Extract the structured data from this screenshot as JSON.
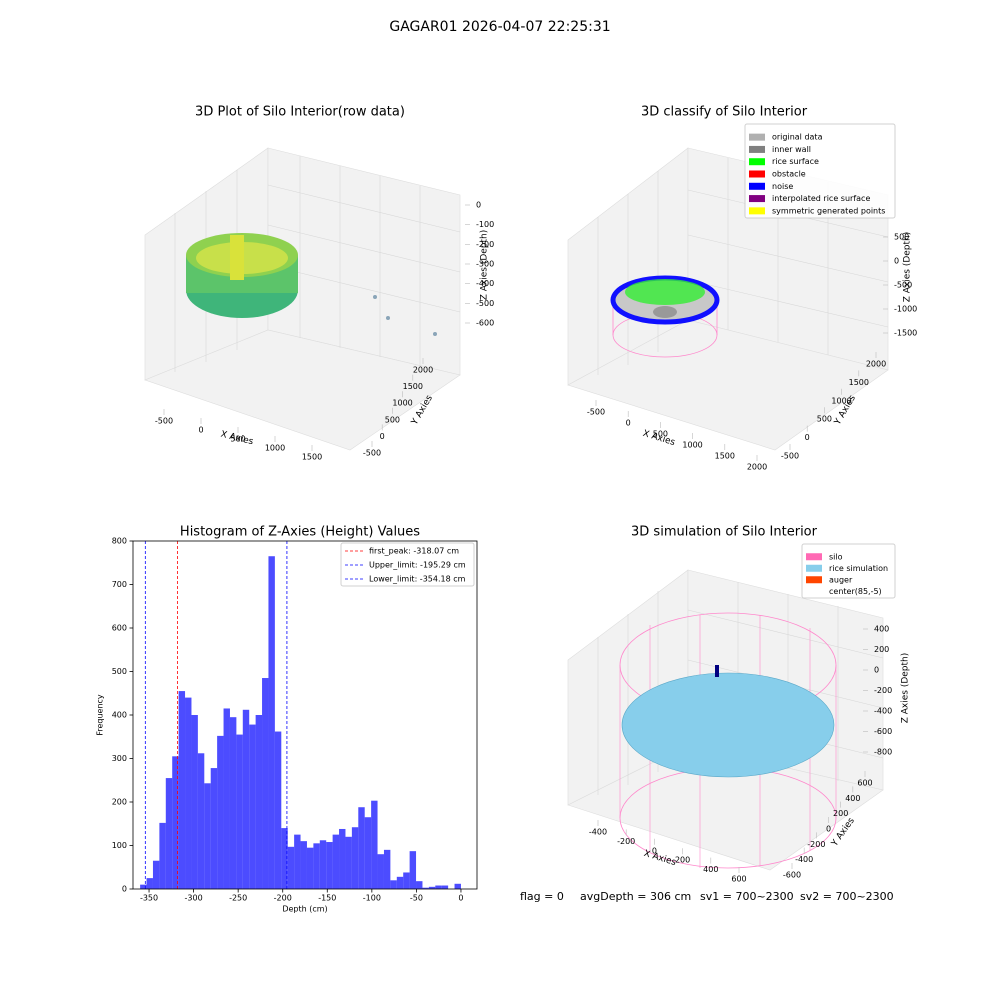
{
  "suptitle": "GAGAR01 2026-04-07 22:25:31",
  "chart_data": [
    {
      "type": "scatter3d",
      "title": "3D Plot of Silo Interior(row data)",
      "xlabel": "X Axies",
      "ylabel": "Y Axies",
      "zlabel": "Z Axies (Depth)",
      "xlim": [
        -500,
        1500
      ],
      "xticks": [
        -500,
        0,
        500,
        1000,
        1500
      ],
      "ylim": [
        -500,
        2000
      ],
      "yticks": [
        -500,
        0,
        500,
        1000,
        1500,
        2000
      ],
      "zlim": [
        -600,
        0
      ],
      "zticks": [
        -600,
        -500,
        -400,
        -300,
        -200,
        -100,
        0
      ]
    },
    {
      "type": "scatter3d",
      "title": "3D classify of Silo Interior",
      "xlabel": "X Axies",
      "ylabel": "Y Axies",
      "zlabel": "Z Axies (Depth)",
      "xlim": [
        -500,
        2000
      ],
      "xticks": [
        -500,
        0,
        500,
        1000,
        1500,
        2000
      ],
      "ylim": [
        -500,
        2000
      ],
      "yticks": [
        -500,
        0,
        500,
        1000,
        1500,
        2000
      ],
      "zlim": [
        -1500,
        500
      ],
      "zticks": [
        -1500,
        -1000,
        -500,
        0,
        500
      ],
      "series": [
        {
          "name": "original data",
          "color": "#b0b0b0"
        },
        {
          "name": "inner wall",
          "color": "#808080"
        },
        {
          "name": "rice surface",
          "color": "#00ff00"
        },
        {
          "name": "obstacle",
          "color": "#ff0000"
        },
        {
          "name": "noise",
          "color": "#0000ff"
        },
        {
          "name": "interpolated rice surface",
          "color": "#800080"
        },
        {
          "name": "symmetric generated points",
          "color": "#ffff00"
        }
      ]
    },
    {
      "type": "histogram",
      "title": "Histogram of Z-Axies (Height) Values",
      "xlabel": "Depth (cm)",
      "ylabel": "Frequency",
      "color": "#0000ff",
      "bins": [
        -360,
        -352.8,
        -345.6,
        -338.4,
        -331.2,
        -324,
        -316.8,
        -309.6,
        -302.4,
        -295.2,
        -288,
        -280.8,
        -273.6,
        -266.4,
        -259.2,
        -252,
        -244.8,
        -237.6,
        -230.4,
        -223.2,
        -216,
        -208.8,
        -201.6,
        -194.4,
        -187.2,
        -180,
        -172.8,
        -165.6,
        -158.4,
        -151.2,
        -144,
        -136.8,
        -129.6,
        -122.4,
        -115.2,
        -108,
        -100.8,
        -93.6,
        -86.4,
        -79.2,
        -72,
        -64.8,
        -57.6,
        -50.4,
        -43.2,
        -36,
        -28.8,
        -21.6,
        -14.4,
        -7.2,
        0
      ],
      "counts": [
        10,
        25,
        65,
        152,
        255,
        305,
        455,
        440,
        400,
        312,
        243,
        278,
        352,
        415,
        395,
        355,
        412,
        378,
        400,
        485,
        765,
        362,
        140,
        97,
        125,
        110,
        95,
        105,
        112,
        108,
        125,
        138,
        120,
        142,
        188,
        165,
        203,
        80,
        90,
        20,
        28,
        38,
        87,
        18,
        3,
        5,
        8,
        8,
        0,
        12
      ],
      "vlines": [
        {
          "label": "first_peak: -318.07 cm",
          "value": -318.07,
          "color": "#ff0000"
        },
        {
          "label": "Upper_limit: -195.29 cm",
          "value": -195.29,
          "color": "#0000ff"
        },
        {
          "label": "Lower_limit: -354.18 cm",
          "value": -354.18,
          "color": "#0000ff"
        }
      ],
      "xlim": [
        -368,
        18
      ],
      "xticks": [
        -350,
        -300,
        -250,
        -200,
        -150,
        -100,
        -50,
        0
      ],
      "ylim": [
        0,
        800
      ],
      "yticks": [
        0,
        100,
        200,
        300,
        400,
        500,
        600,
        700,
        800
      ]
    },
    {
      "type": "scatter3d",
      "title": "3D simulation of Silo Interior",
      "xlabel": "X Axies",
      "ylabel": "Y Axies",
      "zlabel": "Z Axies (Depth)",
      "xlim": [
        -400,
        600
      ],
      "xticks": [
        -400,
        -200,
        0,
        200,
        400,
        600
      ],
      "ylim": [
        -600,
        600
      ],
      "yticks": [
        -600,
        -400,
        -200,
        0,
        200,
        400,
        600
      ],
      "zlim": [
        -800,
        400
      ],
      "zticks": [
        -800,
        -600,
        -400,
        -200,
        0,
        200,
        400
      ],
      "series": [
        {
          "name": "silo",
          "color": "#ff69b4"
        },
        {
          "name": "rice simulation",
          "color": "#87ceeb"
        },
        {
          "name": "auger",
          "color": "#ff4500"
        },
        {
          "name": "center(85,-5)",
          "color": "#ffffff"
        }
      ]
    }
  ],
  "footer": [
    "flag = 0",
    "avgDepth = 306 cm",
    "sv1 = 700~2300",
    "sv2 = 700~2300"
  ]
}
